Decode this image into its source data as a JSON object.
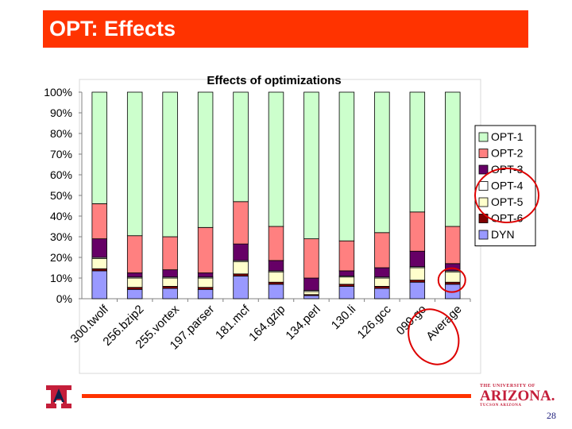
{
  "slide": {
    "title": "OPT: Effects",
    "page_number": "28",
    "logo_left_letter": "A",
    "logo_right": {
      "top": "THE UNIVERSITY OF",
      "main": "ARIZONA.",
      "sub": "TUCSON ARIZONA"
    }
  },
  "colors": {
    "title_bar": "#ff3300",
    "OPT-1": "#ccffcc",
    "OPT-2": "#ff8080",
    "OPT-3": "#660066",
    "OPT-4": "#ffffff",
    "OPT-5": "#ffffcc",
    "OPT-6": "#800000",
    "DYN": "#9999ff",
    "annotation": "#dd0000"
  },
  "chart_data": {
    "type": "bar",
    "stacked": "percent",
    "title": "Effects of optimizations",
    "xlabel": "",
    "ylabel": "",
    "ylim": [
      0,
      100
    ],
    "y_ticks": [
      "0%",
      "10%",
      "20%",
      "30%",
      "40%",
      "50%",
      "60%",
      "70%",
      "80%",
      "90%",
      "100%"
    ],
    "categories": [
      "300.twolf",
      "256.bzip2",
      "255.vortex",
      "197.parser",
      "181.mcf",
      "164.gzip",
      "134.perl",
      "130.li",
      "126.gcc",
      "099.go",
      "Average"
    ],
    "legend_order": [
      "OPT-1",
      "OPT-2",
      "OPT-3",
      "OPT-4",
      "OPT-5",
      "OPT-6",
      "DYN"
    ],
    "legend_position": "right",
    "series": [
      {
        "name": "DYN",
        "values": [
          13.5,
          4.5,
          5,
          4.5,
          11,
          7,
          1.5,
          6,
          5,
          8,
          7
        ]
      },
      {
        "name": "OPT-6",
        "values": [
          1,
          1,
          1,
          1,
          1,
          1,
          0.5,
          1,
          1,
          1,
          1
        ]
      },
      {
        "name": "OPT-5",
        "values": [
          5,
          4.5,
          4,
          4.5,
          6,
          5,
          1.5,
          3.5,
          4,
          6,
          5
        ]
      },
      {
        "name": "OPT-4",
        "values": [
          0.5,
          0.5,
          0.5,
          0.5,
          0.5,
          0.5,
          0.5,
          0.5,
          0.5,
          0.5,
          0.5
        ]
      },
      {
        "name": "OPT-3",
        "values": [
          9,
          2,
          3.5,
          2,
          8,
          5,
          6,
          2.5,
          4.5,
          7.5,
          3.5
        ]
      },
      {
        "name": "OPT-2",
        "values": [
          17,
          18,
          16,
          22,
          20.5,
          16.5,
          19,
          14.5,
          17,
          19,
          18
        ]
      },
      {
        "name": "OPT-1",
        "values": [
          54,
          69.5,
          70,
          65.5,
          53,
          65,
          71,
          72,
          68,
          58,
          65
        ]
      }
    ],
    "annotations": [
      "ellipse around OPT-4 / OPT-5 / OPT-6 legend entries",
      "circle around Average bar bottom",
      "circle around Average label"
    ]
  }
}
